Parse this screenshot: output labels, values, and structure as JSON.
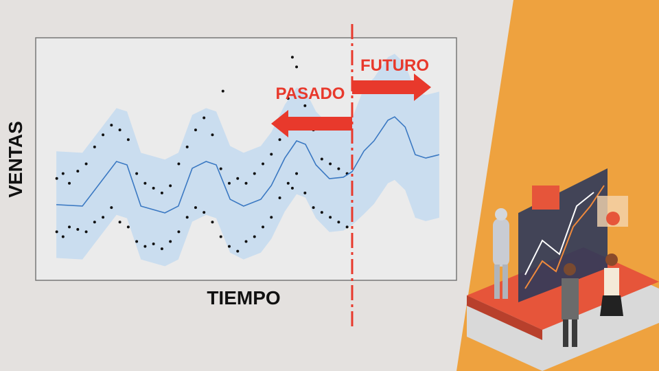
{
  "chart_data": {
    "type": "line",
    "x_label": "TIEMPO",
    "y_label": "VENTAS",
    "annotations": [
      "PASADO",
      "FUTURO"
    ],
    "divider_x": 75.2,
    "xlim": [
      0,
      100
    ],
    "ylim": [
      0,
      100
    ],
    "x": [
      4.9,
      11.1,
      19.2,
      21.7,
      25.0,
      30.7,
      33.9,
      37.2,
      40.5,
      42.9,
      46.2,
      49.4,
      53.5,
      56.0,
      59.2,
      62.0,
      64.1,
      66.6,
      69.8,
      73.1,
      75.2,
      78.0,
      80.4,
      83.7,
      85.3,
      87.8,
      90.2,
      92.7,
      95.9
    ],
    "series": [
      {
        "color": "#3a78c2",
        "values": [
          31.2,
          30.6,
          49.0,
          47.6,
          30.6,
          27.8,
          30.6,
          46.2,
          49.0,
          47.6,
          33.4,
          30.6,
          33.4,
          39.1,
          50.4,
          57.5,
          56.1,
          47.6,
          41.9,
          42.5,
          44.8,
          53.3,
          57.5,
          66.0,
          67.4,
          63.2,
          51.8,
          50.4,
          51.8
        ]
      }
    ],
    "band": {
      "color": "#c6dcef",
      "upper": [
        53.2,
        52.6,
        71.0,
        69.6,
        52.6,
        49.8,
        52.6,
        68.2,
        71.0,
        69.6,
        55.4,
        52.6,
        55.4,
        61.1,
        72.4,
        79.5,
        78.1,
        69.6,
        63.9,
        64.5,
        66.8,
        79.3,
        83.5,
        92.0,
        93.4,
        89.2,
        77.8,
        76.4,
        77.8
      ],
      "lower": [
        9.2,
        8.6,
        27.0,
        25.6,
        8.6,
        5.8,
        8.6,
        24.2,
        27.0,
        25.6,
        11.4,
        8.6,
        11.4,
        17.1,
        28.4,
        35.5,
        34.1,
        25.6,
        19.9,
        20.5,
        22.8,
        27.3,
        31.5,
        40.0,
        41.4,
        37.2,
        25.8,
        24.4,
        25.8
      ]
    },
    "points": {
      "color": "#111111",
      "x": [
        5,
        5,
        6.5,
        6.5,
        8,
        8,
        10,
        10,
        12,
        12,
        14,
        14,
        16,
        16,
        18,
        18,
        20,
        20,
        22,
        22,
        24,
        24,
        26,
        26,
        28,
        28,
        30,
        30,
        32,
        32,
        34,
        34,
        36,
        36,
        38,
        38,
        40,
        40,
        42,
        42,
        44,
        44,
        44.5,
        46,
        46,
        48,
        48,
        50,
        50,
        52,
        52,
        54,
        54,
        56,
        56,
        58,
        58,
        60,
        60,
        61,
        61,
        62,
        62,
        64,
        64,
        66,
        66,
        68,
        68,
        70,
        70,
        72,
        72,
        74,
        74
      ],
      "y": [
        42,
        20,
        44,
        18,
        40,
        22,
        45,
        21,
        48,
        20,
        55,
        24,
        60,
        26,
        64,
        30,
        62,
        24,
        58,
        22,
        44,
        16,
        40,
        14,
        38,
        15,
        36,
        13,
        39,
        16,
        48,
        20,
        55,
        26,
        62,
        30,
        67,
        28,
        60,
        24,
        46,
        18,
        78,
        40,
        14,
        42,
        12,
        40,
        16,
        44,
        18,
        48,
        22,
        52,
        26,
        58,
        34,
        75,
        40,
        92,
        38,
        88,
        44,
        72,
        36,
        62,
        30,
        50,
        28,
        48,
        26,
        46,
        24,
        44,
        22
      ]
    }
  }
}
